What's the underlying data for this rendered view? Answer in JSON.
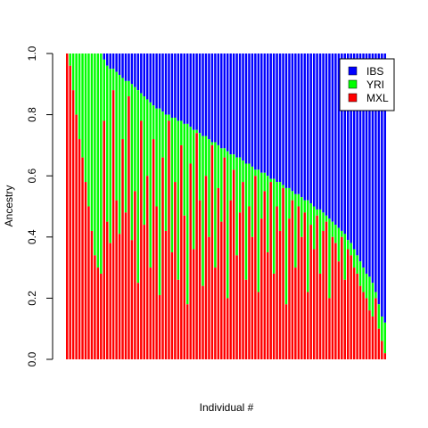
{
  "chart_data": {
    "type": "bar",
    "stacked": true,
    "title": "",
    "xlabel": "Individual #",
    "ylabel": "Ancestry",
    "ylim": [
      0,
      1
    ],
    "yticks": [
      "0.0",
      "0.2",
      "0.4",
      "0.6",
      "0.8",
      "1.0"
    ],
    "legend": {
      "placement": "top-right",
      "entries": [
        {
          "name": "IBS",
          "color": "#0000FF"
        },
        {
          "name": "YRI",
          "color": "#00FF00"
        },
        {
          "name": "MXL",
          "color": "#FF0000"
        }
      ]
    },
    "series_colors": {
      "IBS": "#0000FF",
      "YRI": "#00FF00",
      "MXL": "#FF0000"
    },
    "n_individuals": 104,
    "mxl_plus_yri_envelope": [
      1.0,
      1.0,
      1.0,
      1.0,
      1.0,
      1.0,
      1.0,
      1.0,
      1.0,
      1.0,
      1.0,
      1.0,
      0.98,
      0.96,
      0.95,
      0.95,
      0.94,
      0.93,
      0.92,
      0.91,
      0.91,
      0.9,
      0.89,
      0.88,
      0.87,
      0.86,
      0.85,
      0.84,
      0.83,
      0.82,
      0.82,
      0.81,
      0.8,
      0.8,
      0.79,
      0.79,
      0.78,
      0.78,
      0.77,
      0.77,
      0.76,
      0.75,
      0.75,
      0.74,
      0.73,
      0.73,
      0.72,
      0.71,
      0.71,
      0.7,
      0.69,
      0.69,
      0.68,
      0.67,
      0.67,
      0.66,
      0.66,
      0.65,
      0.64,
      0.64,
      0.63,
      0.62,
      0.62,
      0.61,
      0.61,
      0.6,
      0.59,
      0.59,
      0.58,
      0.58,
      0.57,
      0.56,
      0.56,
      0.55,
      0.54,
      0.54,
      0.53,
      0.52,
      0.52,
      0.51,
      0.5,
      0.49,
      0.49,
      0.48,
      0.47,
      0.46,
      0.45,
      0.44,
      0.43,
      0.42,
      0.41,
      0.39,
      0.38,
      0.36,
      0.34,
      0.32,
      0.3,
      0.28,
      0.27,
      0.25,
      0.22,
      0.18,
      0.14,
      0.12
    ],
    "mxl": [
      1.0,
      0.96,
      0.88,
      0.8,
      0.72,
      0.66,
      0.58,
      0.5,
      0.42,
      0.34,
      0.3,
      0.28,
      0.78,
      0.45,
      0.38,
      0.88,
      0.52,
      0.41,
      0.72,
      0.48,
      0.86,
      0.39,
      0.55,
      0.25,
      0.78,
      0.44,
      0.6,
      0.3,
      0.72,
      0.5,
      0.21,
      0.66,
      0.42,
      0.78,
      0.35,
      0.58,
      0.26,
      0.7,
      0.47,
      0.18,
      0.64,
      0.36,
      0.74,
      0.52,
      0.24,
      0.6,
      0.4,
      0.7,
      0.3,
      0.56,
      0.45,
      0.66,
      0.2,
      0.52,
      0.62,
      0.34,
      0.48,
      0.58,
      0.26,
      0.5,
      0.4,
      0.6,
      0.22,
      0.46,
      0.55,
      0.35,
      0.58,
      0.28,
      0.5,
      0.42,
      0.56,
      0.18,
      0.46,
      0.52,
      0.3,
      0.5,
      0.4,
      0.48,
      0.22,
      0.44,
      0.36,
      0.47,
      0.28,
      0.42,
      0.45,
      0.2,
      0.4,
      0.38,
      0.32,
      0.4,
      0.26,
      0.36,
      0.34,
      0.3,
      0.28,
      0.24,
      0.22,
      0.2,
      0.16,
      0.14,
      0.2,
      0.1,
      0.06,
      0.02
    ]
  }
}
